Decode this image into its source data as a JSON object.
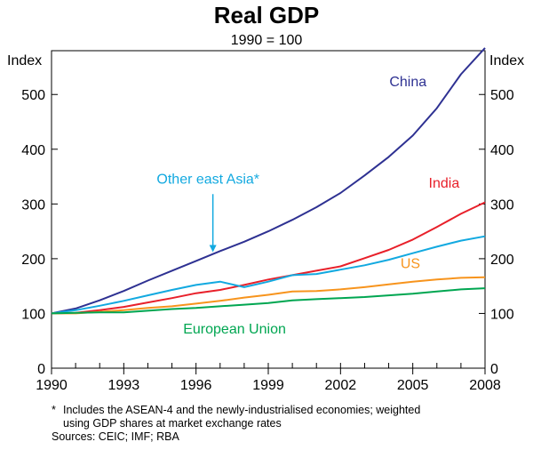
{
  "chart_data": {
    "type": "line",
    "title": "Real GDP",
    "subtitle": "1990 = 100",
    "y_unit_left": "Index",
    "y_unit_right": "Index",
    "xlim": [
      1990,
      2008
    ],
    "ylim": [
      0,
      580
    ],
    "x_ticks": [
      {
        "value": 1990,
        "label": "1990"
      },
      {
        "value": 1993,
        "label": "1993"
      },
      {
        "value": 1996,
        "label": "1996"
      },
      {
        "value": 1999,
        "label": "1999"
      },
      {
        "value": 2002,
        "label": "2002"
      },
      {
        "value": 2005,
        "label": "2005"
      },
      {
        "value": 2008,
        "label": "2008"
      }
    ],
    "y_ticks": [
      {
        "value": 0,
        "label": "0"
      },
      {
        "value": 100,
        "label": "100"
      },
      {
        "value": 200,
        "label": "200"
      },
      {
        "value": 300,
        "label": "300"
      },
      {
        "value": 400,
        "label": "400"
      },
      {
        "value": 500,
        "label": "500"
      }
    ],
    "series": [
      {
        "name": "China",
        "color": "#2e3192",
        "x": [
          1990,
          1991,
          1992,
          1993,
          1994,
          1995,
          1996,
          1997,
          1998,
          1999,
          2000,
          2001,
          2002,
          2003,
          2004,
          2005,
          2006,
          2007,
          2008
        ],
        "values": [
          100,
          109,
          124,
          141,
          160,
          178,
          196,
          214,
          231,
          250,
          271,
          294,
          320,
          352,
          386,
          425,
          475,
          537,
          585
        ]
      },
      {
        "name": "India",
        "color": "#e8202a",
        "x": [
          1990,
          1991,
          1992,
          1993,
          1994,
          1995,
          1996,
          1997,
          1998,
          1999,
          2000,
          2001,
          2002,
          2003,
          2004,
          2005,
          2006,
          2007,
          2008
        ],
        "values": [
          100,
          101,
          106,
          112,
          120,
          128,
          137,
          143,
          152,
          162,
          170,
          178,
          186,
          201,
          216,
          235,
          258,
          282,
          303
        ]
      },
      {
        "name": "Other east Asia*",
        "color": "#12a9e0",
        "x": [
          1990,
          1991,
          1992,
          1993,
          1994,
          1995,
          1996,
          1997,
          1998,
          1999,
          2000,
          2001,
          2002,
          2003,
          2004,
          2005,
          2006,
          2007,
          2008
        ],
        "values": [
          100,
          106,
          114,
          123,
          133,
          143,
          152,
          158,
          148,
          158,
          170,
          172,
          180,
          188,
          198,
          210,
          222,
          233,
          241
        ]
      },
      {
        "name": "US",
        "color": "#f7941d",
        "x": [
          1990,
          1991,
          1992,
          1993,
          1994,
          1995,
          1996,
          1997,
          1998,
          1999,
          2000,
          2001,
          2002,
          2003,
          2004,
          2005,
          2006,
          2007,
          2008
        ],
        "values": [
          100,
          100,
          103,
          106,
          110,
          113,
          118,
          123,
          129,
          134,
          140,
          141,
          144,
          148,
          153,
          158,
          162,
          165,
          166
        ]
      },
      {
        "name": "European Union",
        "color": "#00a651",
        "x": [
          1990,
          1991,
          1992,
          1993,
          1994,
          1995,
          1996,
          1997,
          1998,
          1999,
          2000,
          2001,
          2002,
          2003,
          2004,
          2005,
          2006,
          2007,
          2008
        ],
        "values": [
          100,
          101,
          102,
          102,
          105,
          108,
          110,
          113,
          116,
          119,
          124,
          126,
          128,
          130,
          133,
          136,
          140,
          144,
          146
        ]
      }
    ],
    "annotations": [
      {
        "text": "China",
        "series": "China",
        "color": "#2e3192",
        "anchor_x": 2004.8,
        "anchor_y": 515
      },
      {
        "text": "India",
        "series": "India",
        "color": "#e8202a",
        "anchor_x": 2006.3,
        "anchor_y": 330
      },
      {
        "text": "Other east Asia*",
        "series": "Other east Asia*",
        "color": "#12a9e0",
        "anchor_x": 1996.5,
        "anchor_y": 337
      },
      {
        "text": "US",
        "series": "US",
        "color": "#f7941d",
        "anchor_x": 2004.9,
        "anchor_y": 183
      },
      {
        "text": "European Union",
        "series": "European Union",
        "color": "#00a651",
        "anchor_x": 1997.6,
        "anchor_y": 63
      }
    ],
    "arrow": {
      "series": "Other east Asia*",
      "from": [
        1996.7,
        318
      ],
      "to": [
        1996.7,
        212
      ]
    }
  },
  "footnote": {
    "marker": "*",
    "line1": "Includes the ASEAN-4 and the newly-industrialised economies; weighted",
    "line2": "using GDP shares at market exchange rates",
    "sources": "Sources: CEIC; IMF; RBA"
  }
}
